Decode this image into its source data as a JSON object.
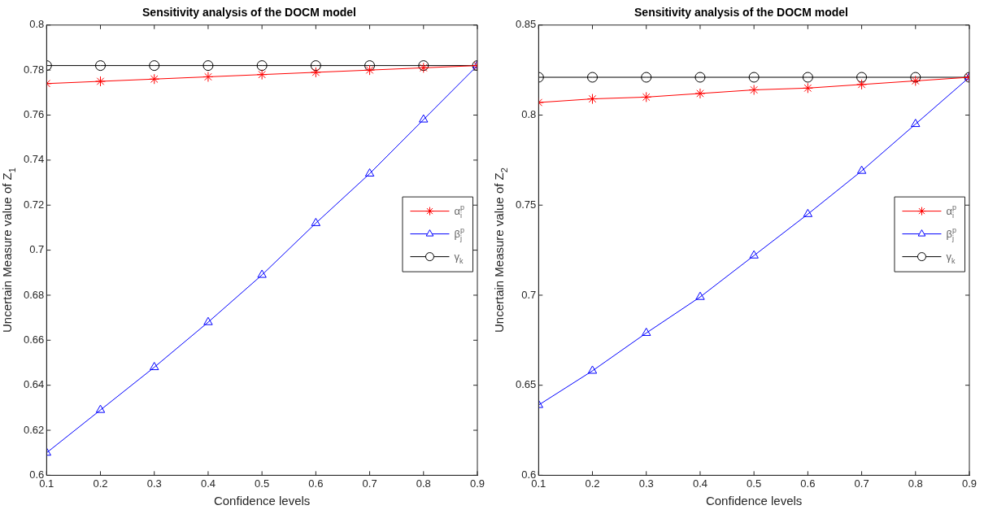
{
  "chart_data": [
    {
      "type": "line",
      "title": "Sensitivity analysis of the DOCM model",
      "xlabel": "Confidence levels",
      "ylabel": "Uncertain Measure value of Z$_{1}$",
      "x": [
        0.1,
        0.2,
        0.3,
        0.4,
        0.5,
        0.6,
        0.7,
        0.8,
        0.9
      ],
      "series": [
        {
          "name": "α$_{i}$$^{p}$",
          "color": "#ff0000",
          "marker": "cross",
          "values": [
            0.774,
            0.775,
            0.776,
            0.777,
            0.778,
            0.779,
            0.78,
            0.781,
            0.782
          ]
        },
        {
          "name": "β$_{j}$$^{p}$",
          "color": "#0000ff",
          "marker": "triangle",
          "values": [
            0.61,
            0.629,
            0.648,
            0.668,
            0.689,
            0.712,
            0.734,
            0.758,
            0.782
          ]
        },
        {
          "name": "γ$_{k}$",
          "color": "#000000",
          "marker": "circle",
          "values": [
            0.782,
            0.782,
            0.782,
            0.782,
            0.782,
            0.782,
            0.782,
            0.782,
            0.782
          ]
        }
      ],
      "xlim": [
        0.1,
        0.9
      ],
      "xticks": [
        0.1,
        0.2,
        0.3,
        0.4,
        0.5,
        0.6,
        0.7,
        0.8,
        0.9
      ],
      "ylim": [
        0.6,
        0.8
      ],
      "yticks": [
        0.6,
        0.62,
        0.64,
        0.66,
        0.68,
        0.7,
        0.72,
        0.74,
        0.76,
        0.78,
        0.8
      ],
      "legend": "right"
    },
    {
      "type": "line",
      "title": "Sensitivity analysis of the DOCM model",
      "xlabel": "Confidence levels",
      "ylabel": "Uncertain Measure value of Z$_{2}$",
      "x": [
        0.1,
        0.2,
        0.3,
        0.4,
        0.5,
        0.6,
        0.7,
        0.8,
        0.9
      ],
      "series": [
        {
          "name": "α$_{i}$$^{p}$",
          "color": "#ff0000",
          "marker": "cross",
          "values": [
            0.807,
            0.809,
            0.81,
            0.812,
            0.814,
            0.815,
            0.817,
            0.819,
            0.821
          ]
        },
        {
          "name": "β$_{j}$$^{p}$",
          "color": "#0000ff",
          "marker": "triangle",
          "values": [
            0.639,
            0.658,
            0.679,
            0.699,
            0.722,
            0.745,
            0.769,
            0.795,
            0.821
          ]
        },
        {
          "name": "γ$_{k}$",
          "color": "#000000",
          "marker": "circle",
          "values": [
            0.821,
            0.821,
            0.821,
            0.821,
            0.821,
            0.821,
            0.821,
            0.821,
            0.821
          ]
        }
      ],
      "xlim": [
        0.1,
        0.9
      ],
      "xticks": [
        0.1,
        0.2,
        0.3,
        0.4,
        0.5,
        0.6,
        0.7,
        0.8,
        0.9
      ],
      "ylim": [
        0.6,
        0.85
      ],
      "yticks": [
        0.6,
        0.65,
        0.7,
        0.75,
        0.8,
        0.85
      ],
      "legend": "right"
    }
  ]
}
